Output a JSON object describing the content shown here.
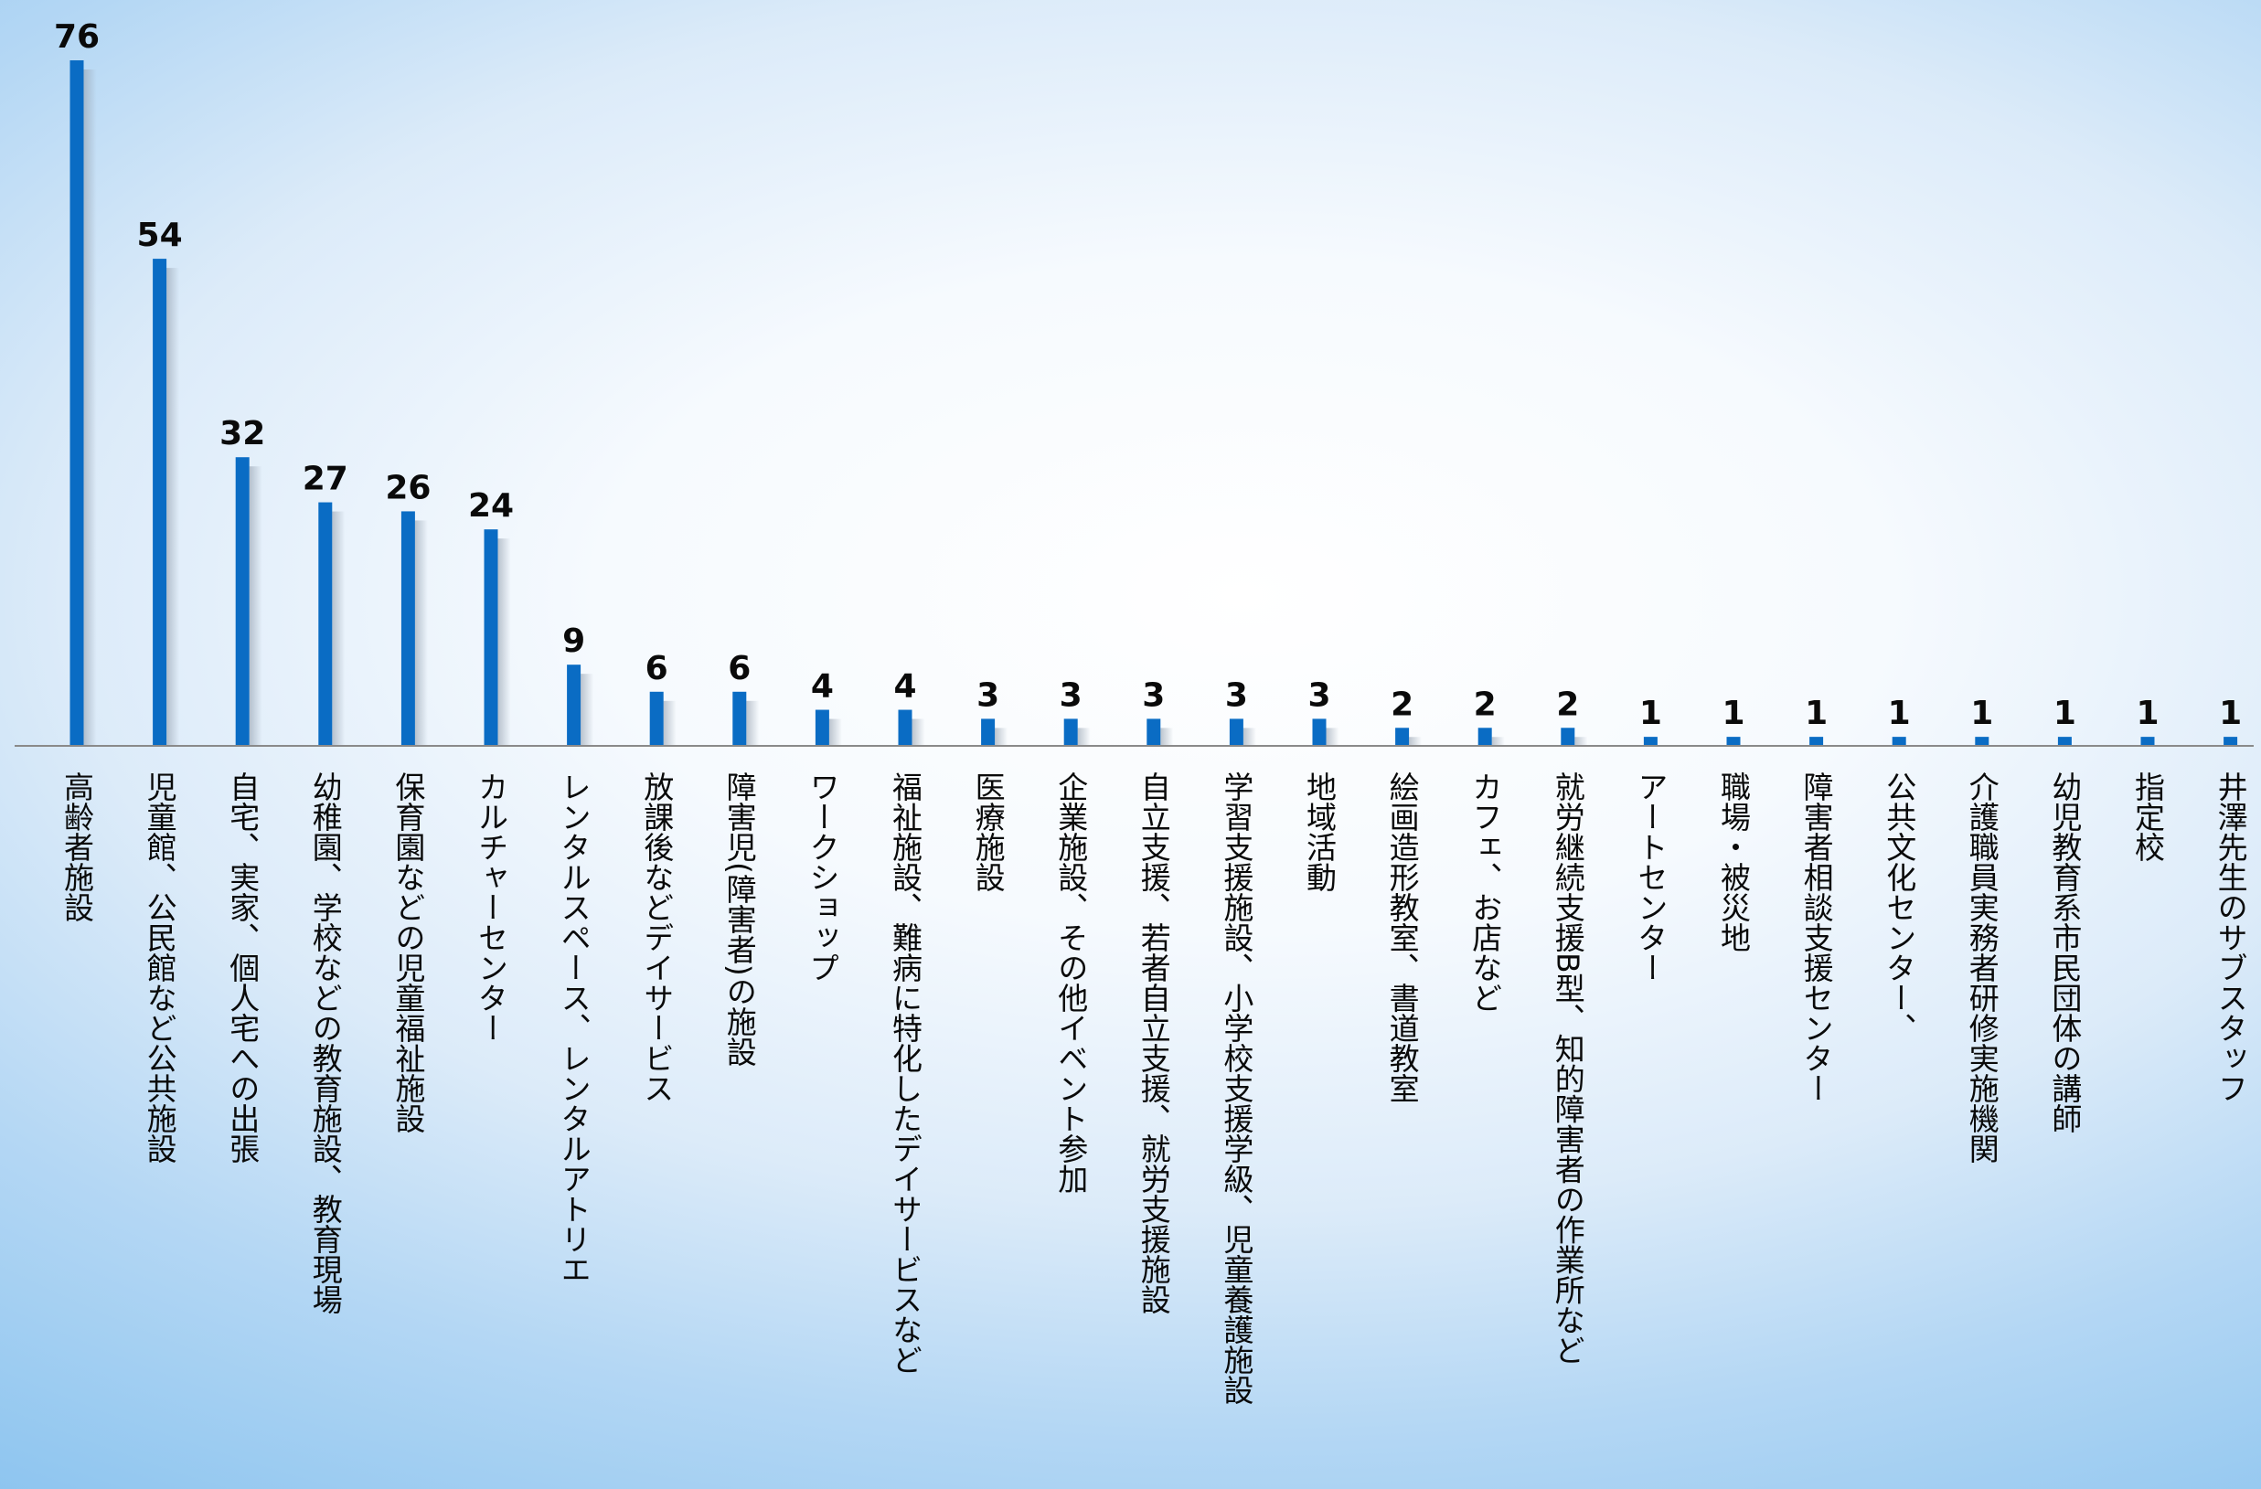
{
  "chart_data": {
    "type": "bar",
    "title": "",
    "xlabel": "",
    "ylabel": "",
    "ylim": [
      0,
      76
    ],
    "grid": false,
    "legend": "none",
    "bar_color": "#0a6cc4",
    "categories": [
      "高齢者施設",
      "児童館、公民館など公共施設",
      "自宅、実家、個人宅への出張",
      "幼稚園、学校などの教育施設、教育現場",
      "保育園などの児童福祉施設",
      "カルチャーセンター",
      "レンタルスペース、レンタルアトリエ",
      "放課後などデイサービス",
      "障害児(障害者)の施設",
      "ワークショップ",
      "福祉施設、難病に特化したデイサービスなど",
      "医療施設",
      "企業施設、その他イベント参加",
      "自立支援、若者自立支援、就労支援施設",
      "学習支援施設、小学校支援学級、児童養護施設",
      "地域活動",
      "絵画造形教室、書道教室",
      "カフェ、お店など",
      "就労継続支援B型、知的障害者の作業所など",
      "アートセンター",
      "職場・被災地",
      "障害者相談支援センター",
      "公共文化センター、",
      "介護職員実務者研修実施機関",
      "幼児教育系市民団体の講師",
      "指定校",
      "井澤先生のサブスタッフ"
    ],
    "values": [
      76,
      54,
      32,
      27,
      26,
      24,
      9,
      6,
      6,
      4,
      4,
      3,
      3,
      3,
      3,
      3,
      2,
      2,
      2,
      1,
      1,
      1,
      1,
      1,
      1,
      1,
      1
    ]
  }
}
